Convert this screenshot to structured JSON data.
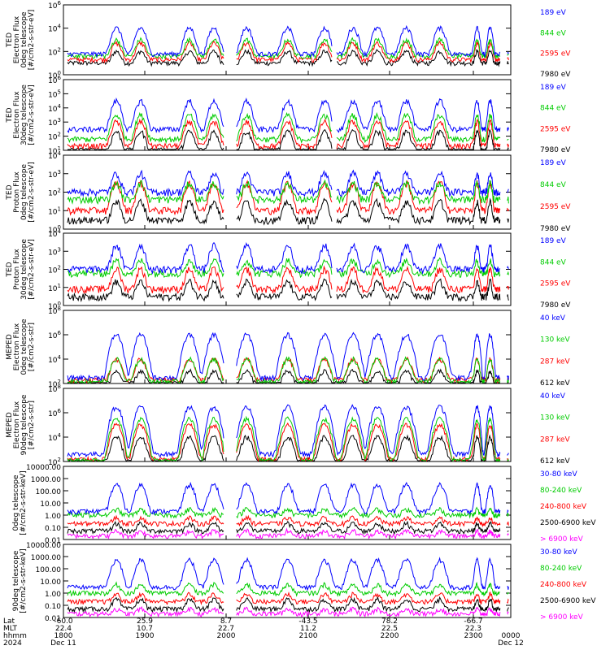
{
  "chart_data": [
    {
      "type": "line",
      "ylabel_lines": [
        "TED",
        "Electron Flux",
        "0deg telescope",
        "[#/cm2-s-str-eV]"
      ],
      "yscale": "log",
      "yticks": [
        "10^0",
        "10^2",
        "10^4",
        "10^6"
      ],
      "ytick_values": [
        1,
        100,
        10000,
        1000000
      ],
      "series": [
        {
          "name": "7980 eV",
          "color": "#000000",
          "base": 10,
          "active": 100
        },
        {
          "name": "2595 eV",
          "color": "#ff0000",
          "base": 20,
          "active": 500
        },
        {
          "name": "844 eV",
          "color": "#00cc00",
          "base": 40,
          "active": 1000
        },
        {
          "name": "189 eV",
          "color": "#0000ff",
          "base": 60,
          "active": 10000
        }
      ]
    },
    {
      "type": "line",
      "ylabel_lines": [
        "TED",
        "Electron Flux",
        "30deg telescope",
        "[#/cm2-s-str-eV]"
      ],
      "yscale": "log",
      "yticks": [
        "10^1",
        "10^2",
        "10^3",
        "10^4",
        "10^5",
        "10^6"
      ],
      "ytick_values": [
        10,
        100,
        1000,
        10000,
        100000,
        1000000
      ],
      "series": [
        {
          "name": "7980 eV",
          "color": "#000000",
          "base": 10,
          "active": 200
        },
        {
          "name": "2595 eV",
          "color": "#ff0000",
          "base": 20,
          "active": 1000
        },
        {
          "name": "844 eV",
          "color": "#00cc00",
          "base": 60,
          "active": 3000
        },
        {
          "name": "189 eV",
          "color": "#0000ff",
          "base": 300,
          "active": 30000
        }
      ]
    },
    {
      "type": "line",
      "ylabel_lines": [
        "TED",
        "Proton Flux",
        "0deg telescope",
        "[#/cm2-s-str-eV]"
      ],
      "yscale": "log",
      "yticks": [
        "10^0",
        "10^1",
        "10^2",
        "10^3",
        "10^4"
      ],
      "ytick_values": [
        1,
        10,
        100,
        1000,
        10000
      ],
      "series": [
        {
          "name": "7980 eV",
          "color": "#000000",
          "base": 3,
          "active": 30
        },
        {
          "name": "2595 eV",
          "color": "#ff0000",
          "base": 10,
          "active": 300
        },
        {
          "name": "844 eV",
          "color": "#00cc00",
          "base": 40,
          "active": 300
        },
        {
          "name": "189 eV",
          "color": "#0000ff",
          "base": 100,
          "active": 1000
        }
      ]
    },
    {
      "type": "line",
      "ylabel_lines": [
        "TED",
        "Proton Flux",
        "30deg telescope",
        "[#/cm2-s-str-eV]"
      ],
      "yscale": "log",
      "yticks": [
        "10^0",
        "10^1",
        "10^2",
        "10^3",
        "10^4"
      ],
      "ytick_values": [
        1,
        10,
        100,
        1000,
        10000
      ],
      "series": [
        {
          "name": "7980 eV",
          "color": "#000000",
          "base": 3,
          "active": 20
        },
        {
          "name": "2595 eV",
          "color": "#ff0000",
          "base": 8,
          "active": 100
        },
        {
          "name": "844 eV",
          "color": "#00cc00",
          "base": 60,
          "active": 300
        },
        {
          "name": "189 eV",
          "color": "#0000ff",
          "base": 100,
          "active": 2000
        }
      ]
    },
    {
      "type": "line",
      "ylabel_lines": [
        "MEPED",
        "Electron Flux",
        "0deg telescope",
        "[#/cm2-s-str]"
      ],
      "yscale": "log",
      "yticks": [
        "10^2",
        "10^4",
        "10^6",
        "10^8"
      ],
      "ytick_values": [
        100,
        10000,
        1000000,
        100000000
      ],
      "series": [
        {
          "name": "612 keV",
          "color": "#000000",
          "base": 100,
          "active": 1000
        },
        {
          "name": "287 keV",
          "color": "#ff0000",
          "base": 200,
          "active": 10000
        },
        {
          "name": "130 keV",
          "color": "#00cc00",
          "base": 150,
          "active": 10000
        },
        {
          "name": "40 keV",
          "color": "#0000ff",
          "base": 300,
          "active": 1000000
        }
      ]
    },
    {
      "type": "line",
      "ylabel_lines": [
        "MEPED",
        "Electron Flux",
        "90deg telescope",
        "[#/cm2-s-str]"
      ],
      "yscale": "log",
      "yticks": [
        "10^2",
        "10^4",
        "10^6",
        "10^8"
      ],
      "ytick_values": [
        100,
        10000,
        1000000,
        100000000
      ],
      "series": [
        {
          "name": "612 keV",
          "color": "#000000",
          "base": 100,
          "active": 10000
        },
        {
          "name": "287 keV",
          "color": "#ff0000",
          "base": 150,
          "active": 100000
        },
        {
          "name": "130 keV",
          "color": "#00cc00",
          "base": 120,
          "active": 300000
        },
        {
          "name": "40 keV",
          "color": "#0000ff",
          "base": 400,
          "active": 3000000
        }
      ]
    },
    {
      "type": "line",
      "ylabel_lines": [
        "0deg telescope",
        "[#/cm2-s-str-keV]"
      ],
      "yscale": "log",
      "yticks": [
        "0.01",
        "0.10",
        "1.00",
        "10.00",
        "100.00",
        "1000.00",
        "10000.00"
      ],
      "ytick_values": [
        0.01,
        0.1,
        1,
        10,
        100,
        1000,
        10000
      ],
      "series": [
        {
          "name": "> 6900 keV",
          "color": "#ff00ff",
          "base": 0.02,
          "active": 0.05
        },
        {
          "name": "2500-6900 keV",
          "color": "#000000",
          "base": 0.05,
          "active": 0.2
        },
        {
          "name": "240-800 keV",
          "color": "#ff0000",
          "base": 0.2,
          "active": 0.6
        },
        {
          "name": "80-240 keV",
          "color": "#00cc00",
          "base": 1,
          "active": 3
        },
        {
          "name": "30-80 keV",
          "color": "#0000ff",
          "base": 2,
          "active": 300
        }
      ]
    },
    {
      "type": "line",
      "ylabel_lines": [
        "90deg telescope",
        "[#/cm2-s-str-keV]"
      ],
      "yscale": "log",
      "yticks": [
        "0.01",
        "0.10",
        "1.00",
        "10.00",
        "100.00",
        "1000.00",
        "10000.00"
      ],
      "ytick_values": [
        0.01,
        0.1,
        1,
        10,
        100,
        1000,
        10000
      ],
      "series": [
        {
          "name": "> 6900 keV",
          "color": "#ff00ff",
          "base": 0.02,
          "active": 0.05
        },
        {
          "name": "2500-6900 keV",
          "color": "#000000",
          "base": 0.05,
          "active": 0.3
        },
        {
          "name": "240-800 keV",
          "color": "#ff0000",
          "base": 0.2,
          "active": 0.8
        },
        {
          "name": "80-240 keV",
          "color": "#00cc00",
          "base": 1,
          "active": 5
        },
        {
          "name": "30-80 keV",
          "color": "#0000ff",
          "base": 3,
          "active": 500
        }
      ]
    }
  ],
  "time_axis": {
    "row_labels": [
      "Lat",
      "MLT",
      "hhmm",
      "2024"
    ],
    "ticks": [
      {
        "hour": 0,
        "lat": "-60.0",
        "mlt": "22.4",
        "hhmm": "1800",
        "date": "Dec 11"
      },
      {
        "hour": 1,
        "lat": "25.9",
        "mlt": "10.7",
        "hhmm": "1900",
        "date": ""
      },
      {
        "hour": 2,
        "lat": "8.7",
        "mlt": "22.7",
        "hhmm": "2000",
        "date": ""
      },
      {
        "hour": 3,
        "lat": "-43.5",
        "mlt": "11.2",
        "hhmm": "2100",
        "date": ""
      },
      {
        "hour": 4,
        "lat": "78.2",
        "mlt": "22.5",
        "hhmm": "2200",
        "date": ""
      },
      {
        "hour": 5,
        "lat": "-66.7",
        "mlt": "22.3",
        "hhmm": "2300",
        "date": ""
      },
      {
        "hour": 6,
        "lat": "",
        "mlt": "",
        "hhmm": "0000",
        "date": "Dec 12"
      }
    ]
  }
}
